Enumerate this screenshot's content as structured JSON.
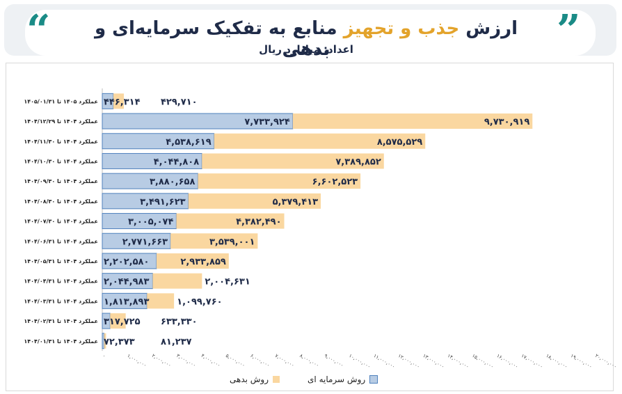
{
  "header": {
    "title_prefix": "ارزش",
    "title_highlight": "جذب و تجهیز",
    "title_suffix": "منابع به تفکیک سرمایه‌ای و بدهی",
    "subtitle": "اعداد: میلیارد ریال"
  },
  "colors": {
    "equity": "#b8cce4",
    "equity_border": "#4f81bd",
    "debt": "#fad7a0",
    "quote": "#1a8b86",
    "highlight": "#e3a32b",
    "title": "#1f2b48"
  },
  "chart_data": {
    "type": "bar",
    "orientation": "horizontal",
    "stacked": true,
    "categories": [
      "عملکرد ۱۴۰۵ تا ۱۴۰۵/۰۱/۳۱",
      "عملکرد ۱۴۰۴ تا ۱۴۰۴/۱۲/۲۹",
      "عملکرد ۱۴۰۴ تا ۱۴۰۴/۱۱/۳۰",
      "عملکرد ۱۴۰۴ تا ۱۴۰۴/۱۰/۳۰",
      "عملکرد ۱۴۰۴ تا ۱۴۰۴/۰۹/۳۰",
      "عملکرد ۱۴۰۴ تا ۱۴۰۴/۰۸/۳۰",
      "عملکرد ۱۴۰۴ تا ۱۴۰۴/۰۷/۳۰",
      "عملکرد ۱۴۰۴ تا ۱۴۰۴/۰۶/۳۱",
      "عملکرد ۱۴۰۴ تا ۱۴۰۴/۰۵/۳۱",
      "عملکرد ۱۴۰۴ تا ۱۴۰۴/۰۴/۳۱",
      "عملکرد ۱۴۰۴ تا ۱۴۰۴/۰۳/۳۱",
      "عملکرد ۱۴۰۴ تا ۱۴۰۴/۰۲/۳۱",
      "عملکرد ۱۴۰۴ تا ۱۴۰۴/۰۱/۳۱"
    ],
    "series": [
      {
        "name": "روش سرمایه ای",
        "color": "#b8cce4",
        "values": [
          446314,
          7733924,
          4538619,
          4044808,
          3880658,
          3491623,
          3005074,
          2771663,
          2202580,
          2044983,
          1813893,
          317725,
          72373
        ],
        "labels": [
          "۴۴۶,۳۱۴",
          "۷,۷۳۳,۹۲۴",
          "۴,۵۳۸,۶۱۹",
          "۴,۰۴۴,۸۰۸",
          "۳,۸۸۰,۶۵۸",
          "۳,۴۹۱,۶۲۳",
          "۳,۰۰۵,۰۷۴",
          "۲,۷۷۱,۶۶۳",
          "۲,۲۰۲,۵۸۰",
          "۲,۰۴۴,۹۸۳",
          "۱,۸۱۳,۸۹۳",
          "۳۱۷,۷۲۵",
          "۷۲,۳۷۳"
        ]
      },
      {
        "name": "روش بدهی",
        "color": "#fad7a0",
        "values": [
          429710,
          9730919,
          8575529,
          7389852,
          6602523,
          5379413,
          4382490,
          3539001,
          2933859,
          2004631,
          1099760,
          633330,
          81237
        ],
        "labels": [
          "۴۲۹,۷۱۰",
          "۹,۷۳۰,۹۱۹",
          "۸,۵۷۵,۵۲۹",
          "۷,۳۸۹,۸۵۲",
          "۶,۶۰۲,۵۲۳",
          "۵,۳۷۹,۴۱۳",
          "۴,۳۸۲,۴۹۰",
          "۳,۵۳۹,۰۰۱",
          "۲,۹۳۳,۸۵۹",
          "۲,۰۰۴,۶۳۱",
          "۱,۰۹۹,۷۶۰",
          "۶۳۳,۳۳۰",
          "۸۱,۲۳۷"
        ]
      }
    ],
    "xlim": [
      0,
      20000000
    ],
    "xticks": [
      0,
      1000000,
      2000000,
      3000000,
      4000000,
      5000000,
      6000000,
      7000000,
      8000000,
      9000000,
      10000000,
      11000000,
      12000000,
      13000000,
      14000000,
      15000000,
      16000000,
      17000000,
      18000000,
      19000000,
      20000000
    ],
    "xtick_labels": [
      "۰",
      "۱,۰۰۰,۰۰۰",
      "۲,۰۰۰,۰۰۰",
      "۳,۰۰۰,۰۰۰",
      "۴,۰۰۰,۰۰۰",
      "۵,۰۰۰,۰۰۰",
      "۶,۰۰۰,۰۰۰",
      "۷,۰۰۰,۰۰۰",
      "۸,۰۰۰,۰۰۰",
      "۹,۰۰۰,۰۰۰",
      "۱۰,۰۰۰,۰۰۰",
      "۱۱,۰۰۰,۰۰۰",
      "۱۲,۰۰۰,۰۰۰",
      "۱۳,۰۰۰,۰۰۰",
      "۱۴,۰۰۰,۰۰۰",
      "۱۵,۰۰۰,۰۰۰",
      "۱۶,۰۰۰,۰۰۰",
      "۱۷,۰۰۰,۰۰۰",
      "۱۸,۰۰۰,۰۰۰",
      "۱۹,۰۰۰,۰۰۰",
      "۲۰,۰۰۰,۰۰۰"
    ],
    "grid": false,
    "legend": "bottom"
  }
}
